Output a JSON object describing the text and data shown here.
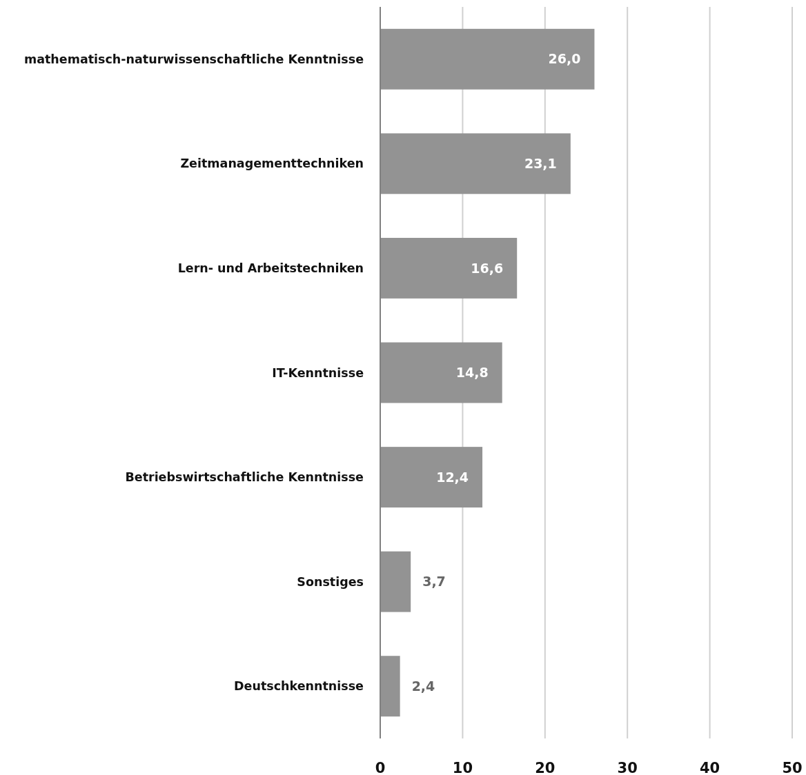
{
  "chart_data": {
    "type": "bar",
    "orientation": "horizontal",
    "categories": [
      "mathematisch-naturwissenschaftliche Kenntnisse",
      "Zeitmanagementtechniken",
      "Lern- und Arbeitstechniken",
      "IT-Kenntnisse",
      "Betriebswirtschaftliche Kenntnisse",
      "Sonstiges",
      "Deutschkenntnisse"
    ],
    "values": [
      26.0,
      23.1,
      16.6,
      14.8,
      12.4,
      3.7,
      2.4
    ],
    "value_labels": [
      "26,0",
      "23,1",
      "16,6",
      "14,8",
      "12,4",
      "3,7",
      "2,4"
    ],
    "color": "#939393",
    "xlim": [
      0,
      50
    ],
    "xticks": [
      0,
      10,
      20,
      30,
      40,
      50
    ],
    "grid": "x"
  }
}
